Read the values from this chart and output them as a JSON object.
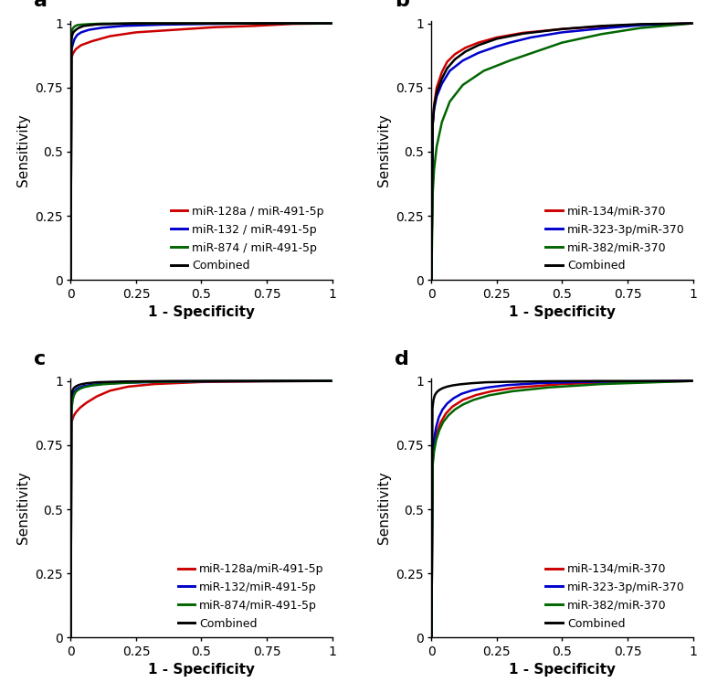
{
  "panels": [
    {
      "label": "a",
      "curves": [
        {
          "label": "miR-128a / miR-491-5p",
          "color": "#cc0000",
          "x": [
            0,
            0.003,
            0.006,
            0.01,
            0.02,
            0.04,
            0.08,
            0.15,
            0.25,
            0.4,
            0.55,
            0.7,
            0.85,
            1.0
          ],
          "y": [
            0,
            0.865,
            0.875,
            0.885,
            0.9,
            0.915,
            0.93,
            0.95,
            0.965,
            0.975,
            0.985,
            0.99,
            0.998,
            1.0
          ]
        },
        {
          "label": "miR-132 / miR-491-5p",
          "color": "#0000cc",
          "x": [
            0,
            0.003,
            0.006,
            0.01,
            0.015,
            0.025,
            0.04,
            0.07,
            0.12,
            0.2,
            0.35,
            0.55,
            0.75,
            1.0
          ],
          "y": [
            0,
            0.895,
            0.91,
            0.925,
            0.94,
            0.955,
            0.965,
            0.975,
            0.983,
            0.99,
            0.995,
            0.998,
            1.0,
            1.0
          ]
        },
        {
          "label": "miR-874 / miR-491-5p",
          "color": "#006600",
          "x": [
            0,
            0.003,
            0.005,
            0.008,
            0.012,
            0.018,
            0.025,
            0.04,
            0.07,
            0.12,
            0.25,
            0.5,
            0.75,
            1.0
          ],
          "y": [
            0,
            0.955,
            0.97,
            0.98,
            0.985,
            0.99,
            0.993,
            0.995,
            0.997,
            0.999,
            1.0,
            1.0,
            1.0,
            1.0
          ]
        },
        {
          "label": "Combined",
          "color": "#000000",
          "x": [
            0,
            0.003,
            0.005,
            0.008,
            0.01,
            0.015,
            0.02,
            0.03,
            0.05,
            0.1,
            0.25,
            0.5,
            0.75,
            1.0
          ],
          "y": [
            0,
            0.935,
            0.95,
            0.96,
            0.965,
            0.97,
            0.975,
            0.982,
            0.99,
            0.996,
            1.0,
            1.0,
            1.0,
            1.0
          ]
        }
      ]
    },
    {
      "label": "b",
      "curves": [
        {
          "label": "miR-134/miR-370",
          "color": "#cc0000",
          "x": [
            0,
            0.005,
            0.01,
            0.02,
            0.04,
            0.06,
            0.09,
            0.13,
            0.18,
            0.25,
            0.35,
            0.5,
            0.65,
            0.8,
            1.0
          ],
          "y": [
            0,
            0.61,
            0.68,
            0.75,
            0.81,
            0.85,
            0.88,
            0.905,
            0.925,
            0.945,
            0.963,
            0.978,
            0.988,
            0.995,
            1.0
          ]
        },
        {
          "label": "miR-323-3p/miR-370",
          "color": "#0000cc",
          "x": [
            0,
            0.005,
            0.01,
            0.02,
            0.04,
            0.07,
            0.12,
            0.18,
            0.25,
            0.3,
            0.38,
            0.5,
            0.65,
            0.8,
            1.0
          ],
          "y": [
            0,
            0.61,
            0.665,
            0.715,
            0.765,
            0.815,
            0.855,
            0.885,
            0.91,
            0.925,
            0.945,
            0.965,
            0.98,
            0.993,
            1.0
          ]
        },
        {
          "label": "miR-382/miR-370",
          "color": "#006600",
          "x": [
            0,
            0.005,
            0.01,
            0.02,
            0.04,
            0.07,
            0.12,
            0.2,
            0.3,
            0.4,
            0.5,
            0.65,
            0.8,
            1.0
          ],
          "y": [
            0,
            0.34,
            0.43,
            0.52,
            0.615,
            0.695,
            0.76,
            0.815,
            0.855,
            0.89,
            0.925,
            0.958,
            0.982,
            1.0
          ]
        },
        {
          "label": "Combined",
          "color": "#000000",
          "x": [
            0,
            0.005,
            0.01,
            0.02,
            0.04,
            0.06,
            0.09,
            0.13,
            0.18,
            0.25,
            0.35,
            0.5,
            0.65,
            0.8,
            1.0
          ],
          "y": [
            0,
            0.61,
            0.675,
            0.73,
            0.785,
            0.825,
            0.86,
            0.89,
            0.915,
            0.94,
            0.96,
            0.978,
            0.99,
            0.997,
            1.0
          ]
        }
      ]
    },
    {
      "label": "c",
      "curves": [
        {
          "label": "miR-128a/miR-491-5p",
          "color": "#cc0000",
          "x": [
            0,
            0.003,
            0.005,
            0.008,
            0.012,
            0.02,
            0.035,
            0.06,
            0.1,
            0.15,
            0.22,
            0.32,
            0.5,
            0.75,
            1.0
          ],
          "y": [
            0,
            0.835,
            0.845,
            0.855,
            0.865,
            0.878,
            0.895,
            0.915,
            0.94,
            0.962,
            0.978,
            0.988,
            0.996,
            0.999,
            1.0
          ]
        },
        {
          "label": "miR-132/miR-491-5p",
          "color": "#0000cc",
          "x": [
            0,
            0.003,
            0.005,
            0.007,
            0.01,
            0.015,
            0.022,
            0.032,
            0.05,
            0.08,
            0.12,
            0.2,
            0.35,
            0.6,
            1.0
          ],
          "y": [
            0,
            0.892,
            0.925,
            0.942,
            0.952,
            0.96,
            0.968,
            0.974,
            0.98,
            0.985,
            0.989,
            0.993,
            0.997,
            0.999,
            1.0
          ]
        },
        {
          "label": "miR-874/miR-491-5p",
          "color": "#006600",
          "x": [
            0,
            0.003,
            0.005,
            0.008,
            0.012,
            0.018,
            0.026,
            0.038,
            0.055,
            0.08,
            0.12,
            0.18,
            0.28,
            0.5,
            1.0
          ],
          "y": [
            0,
            0.875,
            0.905,
            0.928,
            0.944,
            0.956,
            0.964,
            0.971,
            0.977,
            0.982,
            0.987,
            0.991,
            0.996,
            0.999,
            1.0
          ]
        },
        {
          "label": "Combined",
          "color": "#000000",
          "x": [
            0,
            0.002,
            0.004,
            0.006,
            0.009,
            0.012,
            0.016,
            0.022,
            0.03,
            0.04,
            0.06,
            0.1,
            0.2,
            0.4,
            1.0
          ],
          "y": [
            0,
            0.928,
            0.95,
            0.96,
            0.967,
            0.972,
            0.976,
            0.98,
            0.984,
            0.987,
            0.991,
            0.995,
            0.998,
            1.0,
            1.0
          ]
        }
      ]
    },
    {
      "label": "d",
      "curves": [
        {
          "label": "miR-134/miR-370",
          "color": "#cc0000",
          "x": [
            0,
            0.005,
            0.01,
            0.02,
            0.035,
            0.055,
            0.08,
            0.12,
            0.17,
            0.23,
            0.32,
            0.5,
            0.75,
            1.0
          ],
          "y": [
            0,
            0.695,
            0.745,
            0.795,
            0.838,
            0.873,
            0.9,
            0.926,
            0.945,
            0.96,
            0.974,
            0.988,
            0.997,
            1.0
          ]
        },
        {
          "label": "miR-323-3p/miR-370",
          "color": "#0000cc",
          "x": [
            0,
            0.005,
            0.01,
            0.018,
            0.028,
            0.042,
            0.06,
            0.085,
            0.115,
            0.155,
            0.21,
            0.29,
            0.42,
            0.62,
            1.0
          ],
          "y": [
            0,
            0.725,
            0.775,
            0.82,
            0.858,
            0.888,
            0.912,
            0.933,
            0.95,
            0.963,
            0.974,
            0.984,
            0.992,
            0.997,
            1.0
          ]
        },
        {
          "label": "miR-382/miR-370",
          "color": "#006600",
          "x": [
            0,
            0.005,
            0.01,
            0.018,
            0.03,
            0.045,
            0.065,
            0.09,
            0.12,
            0.16,
            0.22,
            0.31,
            0.45,
            0.65,
            1.0
          ],
          "y": [
            0,
            0.675,
            0.726,
            0.77,
            0.808,
            0.84,
            0.866,
            0.889,
            0.908,
            0.926,
            0.944,
            0.96,
            0.975,
            0.988,
            1.0
          ]
        },
        {
          "label": "Combined",
          "color": "#000000",
          "x": [
            0,
            0.004,
            0.008,
            0.013,
            0.02,
            0.03,
            0.043,
            0.06,
            0.082,
            0.11,
            0.15,
            0.21,
            0.3,
            0.45,
            0.65,
            1.0
          ],
          "y": [
            0,
            0.895,
            0.928,
            0.945,
            0.956,
            0.965,
            0.972,
            0.978,
            0.983,
            0.987,
            0.991,
            0.995,
            0.997,
            0.999,
            1.0,
            1.0
          ]
        }
      ]
    }
  ],
  "xlabel": "1 - Specificity",
  "ylabel": "Sensitivity",
  "xticks": [
    0,
    0.25,
    0.5,
    0.75,
    1
  ],
  "yticks": [
    0,
    0.25,
    0.5,
    0.75,
    1
  ],
  "xlim": [
    0,
    1
  ],
  "ylim": [
    0,
    1.01
  ],
  "linewidth": 1.8,
  "bg_color": "#ffffff",
  "label_fontsize": 11,
  "tick_fontsize": 10,
  "legend_fontsize": 9,
  "panel_label_fontsize": 16
}
